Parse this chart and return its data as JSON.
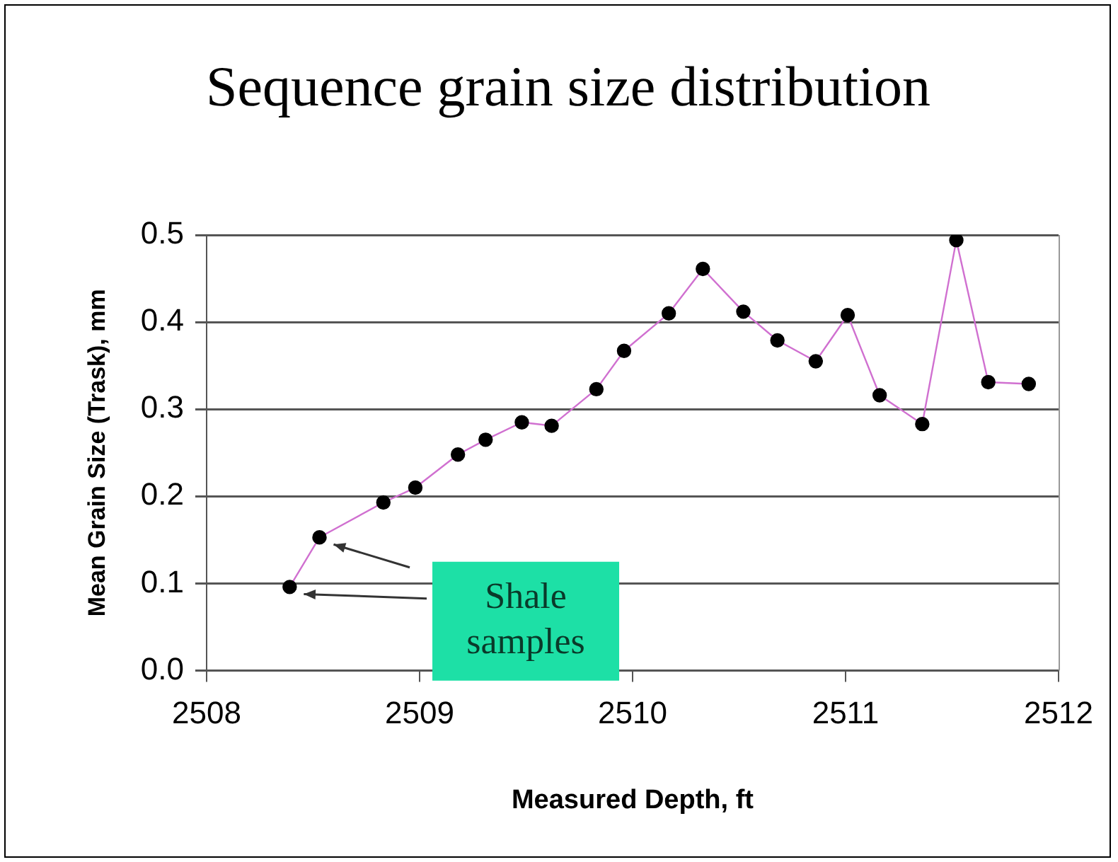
{
  "chart_data": {
    "type": "line",
    "title": "Sequence grain size distribution",
    "xlabel": "Measured Depth, ft",
    "ylabel": "Mean Grain Size (Trask), mm",
    "x": [
      2508.39,
      2508.53,
      2508.83,
      2508.98,
      2509.18,
      2509.31,
      2509.48,
      2509.62,
      2509.83,
      2509.96,
      2510.17,
      2510.33,
      2510.52,
      2510.68,
      2510.86,
      2511.01,
      2511.16,
      2511.36,
      2511.52,
      2511.67,
      2511.86
    ],
    "series": [
      {
        "color": "#d070d0",
        "values": [
          0.096,
          0.153,
          0.193,
          0.21,
          0.248,
          0.265,
          0.285,
          0.281,
          0.323,
          0.367,
          0.41,
          0.461,
          0.412,
          0.379,
          0.355,
          0.408,
          0.316,
          0.283,
          0.494,
          0.331,
          0.329
        ]
      }
    ],
    "xlim": [
      2508,
      2512
    ],
    "xticks": [
      2508,
      2509,
      2510,
      2511,
      2512
    ],
    "ylim": [
      0,
      0.5
    ],
    "yticks": [
      {
        "value": 0,
        "label": "0.0"
      },
      0.1,
      0.2,
      0.3,
      0.4,
      0.5
    ],
    "grid": "y",
    "legend": false,
    "marker": "circle",
    "line_style": "solid",
    "annotations": [
      "Shale samples"
    ]
  }
}
